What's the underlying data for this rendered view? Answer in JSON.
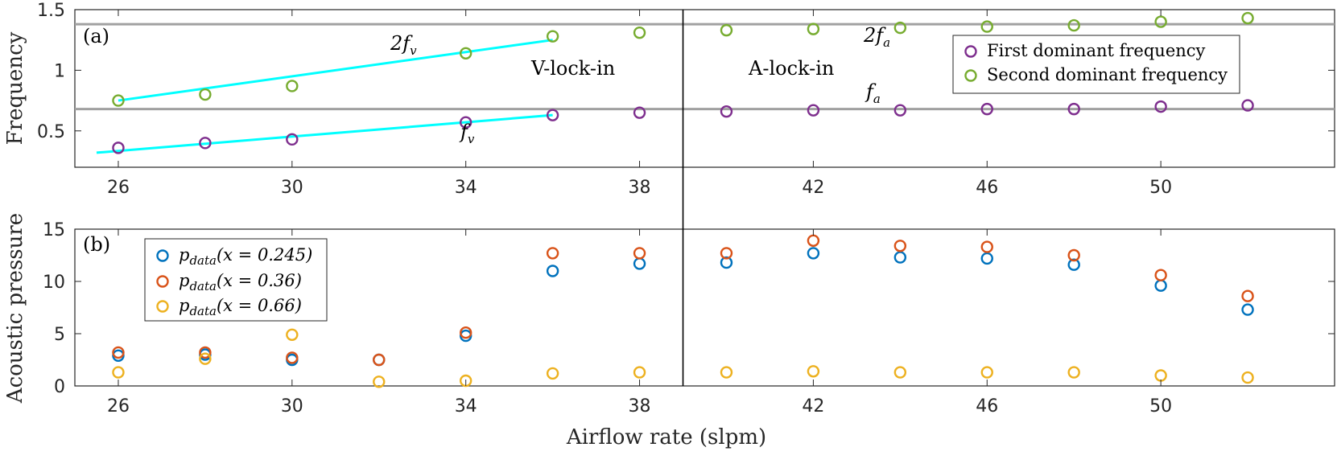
{
  "chart_data": [
    {
      "type": "scatter",
      "panel_label": "(a)",
      "ylabel": "Frequency",
      "xlim": [
        25,
        54
      ],
      "ylim": [
        0.2,
        1.5
      ],
      "x_ticks": [
        "26",
        "30",
        "34",
        "38",
        "42",
        "46",
        "50"
      ],
      "y_ticks": [
        "0.5",
        "1",
        "1.5"
      ],
      "series": [
        {
          "name": "First dominant frequency",
          "color": "#7E2F8E",
          "x": [
            26,
            28,
            30,
            34,
            36,
            38,
            40,
            42,
            44,
            46,
            48,
            50,
            52
          ],
          "y": [
            0.36,
            0.4,
            0.43,
            0.57,
            0.63,
            0.65,
            0.66,
            0.67,
            0.67,
            0.68,
            0.68,
            0.7,
            0.71
          ]
        },
        {
          "name": "Second dominant frequency",
          "color": "#77AC30",
          "x": [
            26,
            28,
            30,
            34,
            36,
            38,
            40,
            42,
            44,
            46,
            48,
            50,
            52
          ],
          "y": [
            0.75,
            0.8,
            0.87,
            1.14,
            1.28,
            1.31,
            1.33,
            1.34,
            1.35,
            1.36,
            1.37,
            1.4,
            1.43
          ]
        }
      ],
      "fit_lines": [
        {
          "name": "f_v fit",
          "color": "#00FFFF",
          "x": [
            25.5,
            36
          ],
          "y": [
            0.32,
            0.63
          ]
        },
        {
          "name": "2f_v fit",
          "color": "#00FFFF",
          "x": [
            26,
            36
          ],
          "y": [
            0.75,
            1.25
          ]
        }
      ],
      "hlines": [
        {
          "name": "f_a",
          "y": 0.68,
          "color": "#a0a0a0"
        },
        {
          "name": "2f_a",
          "y": 1.38,
          "color": "#a0a0a0"
        }
      ],
      "annotations": {
        "v_lock": "V-lock-in",
        "a_lock": "A-lock-in",
        "two_fv_main": "2f",
        "two_fv_sub": "v",
        "fv_main": "f",
        "fv_sub": "v",
        "two_fa_main": "2f",
        "two_fa_sub": "a",
        "fa_main": "f",
        "fa_sub": "a"
      },
      "legend": [
        "First dominant frequency",
        "Second dominant frequency"
      ],
      "legend_position": "top-right",
      "divider_x": 39
    },
    {
      "type": "scatter",
      "panel_label": "(b)",
      "xlabel": "Airflow rate (slpm)",
      "ylabel": "Acoustic pressure",
      "xlim": [
        25,
        54
      ],
      "ylim": [
        0,
        15
      ],
      "x_ticks": [
        "26",
        "30",
        "34",
        "38",
        "42",
        "46",
        "50"
      ],
      "y_ticks": [
        "0",
        "5",
        "10",
        "15"
      ],
      "series": [
        {
          "name": "p_data(x = 0.245)",
          "color": "#0072BD",
          "x": [
            26,
            28,
            30,
            32,
            34,
            36,
            38,
            40,
            42,
            44,
            46,
            48,
            50,
            52
          ],
          "y": [
            2.9,
            3.0,
            2.5,
            2.5,
            4.8,
            11.0,
            11.7,
            11.8,
            12.7,
            12.3,
            12.2,
            11.6,
            9.6,
            7.3
          ]
        },
        {
          "name": "p_data(x = 0.36)",
          "color": "#D95319",
          "x": [
            26,
            28,
            30,
            32,
            34,
            36,
            38,
            40,
            42,
            44,
            46,
            48,
            50,
            52
          ],
          "y": [
            3.2,
            3.2,
            2.7,
            2.5,
            5.1,
            12.7,
            12.7,
            12.7,
            13.9,
            13.4,
            13.3,
            12.5,
            10.6,
            8.6
          ]
        },
        {
          "name": "p_data(x = 0.66)",
          "color": "#EDB120",
          "x": [
            26,
            28,
            30,
            32,
            34,
            36,
            38,
            40,
            42,
            44,
            46,
            48,
            50,
            52
          ],
          "y": [
            1.3,
            2.6,
            4.9,
            0.4,
            0.5,
            1.2,
            1.3,
            1.3,
            1.4,
            1.3,
            1.3,
            1.3,
            1.0,
            0.8
          ]
        }
      ],
      "legend": [
        {
          "main": "p",
          "sub": "data",
          "rest": "(x = 0.245)"
        },
        {
          "main": "p",
          "sub": "data",
          "rest": "(x = 0.36)"
        },
        {
          "main": "p",
          "sub": "data",
          "rest": "(x = 0.66)"
        }
      ],
      "legend_position": "top-left",
      "divider_x": 39
    }
  ]
}
